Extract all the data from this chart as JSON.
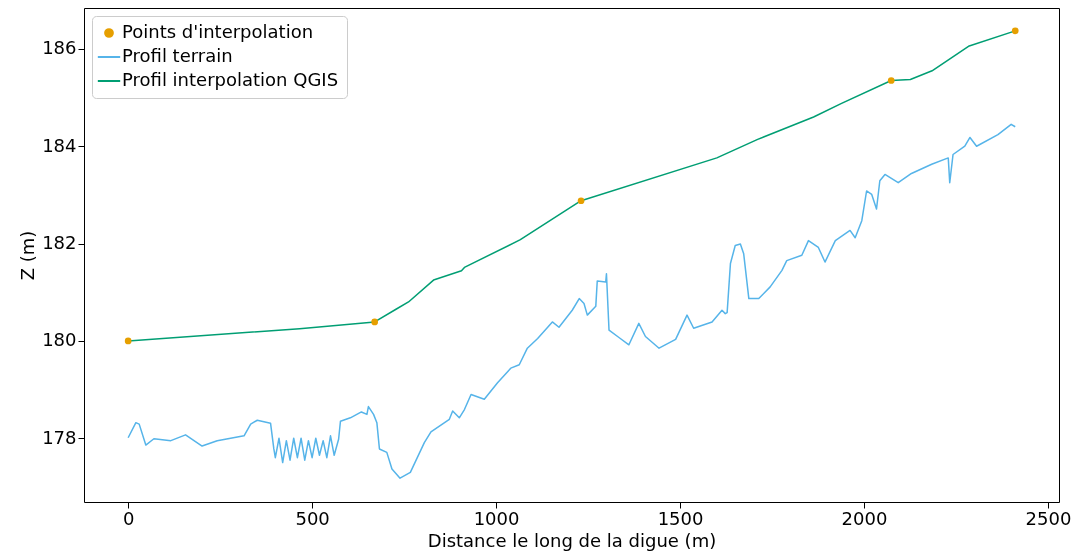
{
  "chart_data": {
    "type": "line",
    "xlabel": "Distance le long de la digue (m)",
    "ylabel": "Z (m)",
    "xlim": [
      -120,
      2530
    ],
    "ylim": [
      176.69,
      186.84
    ],
    "xticks": [
      0,
      500,
      1000,
      1500,
      2000,
      2500
    ],
    "yticks": [
      178,
      180,
      182,
      184,
      186
    ],
    "legend": "top left",
    "grid": false,
    "series": [
      {
        "name": "Points d'interpolation",
        "type": "scatter",
        "marker": "circle",
        "color": "#e69f00",
        "x": [
          0,
          670,
          1231,
          2074,
          2411
        ],
        "values": [
          180.0,
          180.39,
          182.88,
          185.35,
          186.37
        ]
      },
      {
        "name": "Profil terrain",
        "color": "#56b4e9",
        "x": [
          0,
          21,
          30,
          48,
          70,
          116,
          156,
          201,
          242,
          315,
          333,
          351,
          387,
          396,
          400,
          410,
          420,
          430,
          440,
          450,
          460,
          470,
          480,
          490,
          500,
          510,
          520,
          530,
          540,
          550,
          560,
          572,
          577,
          604,
          634,
          649,
          653,
          667,
          676,
          683,
          703,
          717,
          739,
          767,
          805,
          823,
          873,
          882,
          900,
          914,
          932,
          968,
          1004,
          1040,
          1063,
          1085,
          1113,
          1153,
          1171,
          1207,
          1226,
          1239,
          1248,
          1271,
          1275,
          1298,
          1300,
          1307,
          1334,
          1361,
          1388,
          1406,
          1443,
          1488,
          1519,
          1537,
          1587,
          1614,
          1623,
          1628,
          1637,
          1650,
          1664,
          1673,
          1687,
          1714,
          1745,
          1777,
          1790,
          1831,
          1849,
          1876,
          1894,
          1922,
          1962,
          1976,
          1994,
          2007,
          2021,
          2034,
          2043,
          2057,
          2093,
          2129,
          2184,
          2229,
          2233,
          2242,
          2274,
          2288,
          2306,
          2364,
          2400,
          2411
        ],
        "values": [
          178.01,
          178.32,
          178.29,
          177.86,
          177.99,
          177.95,
          178.07,
          177.84,
          177.95,
          178.05,
          178.29,
          178.37,
          178.31,
          177.78,
          177.6,
          178.0,
          177.5,
          177.95,
          177.55,
          178.0,
          177.6,
          178.0,
          177.55,
          177.95,
          177.6,
          178.0,
          177.65,
          177.95,
          177.6,
          178.05,
          177.65,
          177.98,
          178.35,
          178.42,
          178.54,
          178.49,
          178.65,
          178.49,
          178.32,
          177.78,
          177.71,
          177.37,
          177.18,
          177.3,
          177.91,
          178.13,
          178.39,
          178.56,
          178.42,
          178.59,
          178.9,
          178.8,
          179.14,
          179.44,
          179.51,
          179.85,
          180.05,
          180.39,
          180.28,
          180.63,
          180.87,
          180.77,
          180.53,
          180.71,
          181.23,
          181.21,
          181.38,
          180.22,
          180.07,
          179.92,
          180.36,
          180.09,
          179.85,
          180.03,
          180.53,
          180.26,
          180.39,
          180.63,
          180.56,
          180.58,
          181.59,
          181.96,
          181.99,
          181.79,
          180.87,
          180.87,
          181.11,
          181.45,
          181.65,
          181.76,
          182.06,
          181.92,
          181.62,
          182.06,
          182.27,
          182.12,
          182.47,
          183.08,
          183.01,
          182.71,
          183.29,
          183.42,
          183.25,
          183.44,
          183.63,
          183.76,
          183.25,
          183.83,
          184.0,
          184.18,
          184.0,
          184.24,
          184.45,
          184.4
        ]
      },
      {
        "name": "Profil interpolation QGIS",
        "color": "#009e73",
        "x": [
          0,
          466,
          670,
          728,
          762,
          830,
          906,
          914,
          1066,
          1231,
          1600,
          1711,
          1863,
          1939,
          2074,
          2126,
          2185,
          2286,
          2411
        ],
        "values": [
          180.0,
          180.25,
          180.39,
          180.65,
          180.8,
          181.25,
          181.44,
          181.51,
          182.08,
          182.88,
          183.76,
          184.14,
          184.6,
          184.88,
          185.35,
          185.37,
          185.55,
          186.06,
          186.37
        ]
      }
    ]
  }
}
